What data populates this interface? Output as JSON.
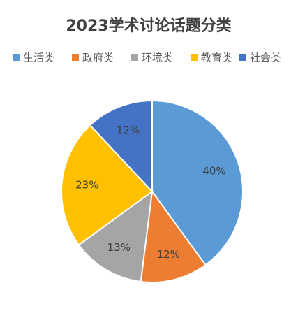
{
  "chart_data": {
    "type": "pie",
    "title": "2023学术讨论话题分类",
    "categories": [
      "生活类",
      "政府类",
      "环境类",
      "教育类",
      "社会类"
    ],
    "values": [
      40,
      12,
      13,
      23,
      12
    ],
    "value_labels": [
      "40%",
      "12%",
      "13%",
      "23%",
      "12%"
    ],
    "colors": [
      "#5b9bd5",
      "#ed7d31",
      "#a5a5a5",
      "#ffc000",
      "#4472c4"
    ],
    "legend": "top"
  }
}
